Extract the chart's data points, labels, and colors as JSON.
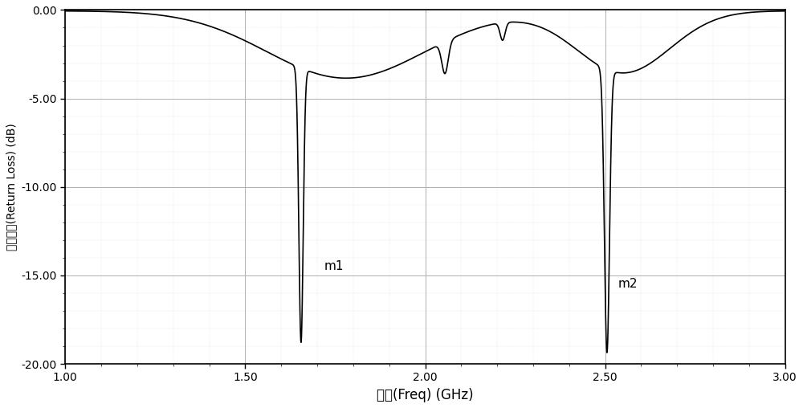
{
  "title": "",
  "xlabel": "频率(Freq) (GHz)",
  "ylabel": "回波损耗(Return Loss) (dB)",
  "xlim": [
    1.0,
    3.0
  ],
  "ylim": [
    -20.0,
    0.0
  ],
  "xticks": [
    1.0,
    1.5,
    2.0,
    2.5,
    3.0
  ],
  "xtick_labels": [
    "1.00",
    "1.50",
    "2.00",
    "2.50",
    "3.00"
  ],
  "yticks": [
    0.0,
    -5.0,
    -10.0,
    -15.0,
    -20.0
  ],
  "ytick_labels": [
    "0.00",
    "-5.00",
    "-10.00",
    "-15.00",
    "-20.00"
  ],
  "line_color": "#000000",
  "line_width": 1.2,
  "background_color": "#ffffff",
  "grid_color": "#b0b0b0",
  "m1_x": 1.65,
  "m1_y": -16.5,
  "m2_x": 2.505,
  "m2_y": -17.2,
  "marker_fontsize": 11
}
